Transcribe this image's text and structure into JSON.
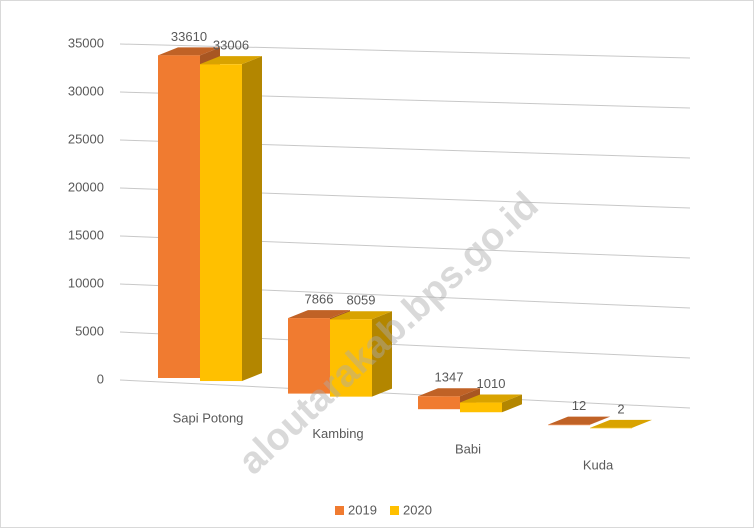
{
  "chart_data": {
    "type": "bar3d",
    "categories": [
      "Sapi Potong",
      "Kambing",
      "Babi",
      "Kuda"
    ],
    "series": [
      {
        "name": "2019",
        "color": "#f07b30",
        "values": [
          33610,
          7866,
          1347,
          12
        ]
      },
      {
        "name": "2020",
        "color": "#ffc000",
        "values": [
          33006,
          8059,
          1010,
          2
        ]
      }
    ],
    "ylim": [
      0,
      35000
    ],
    "yticks": [
      0,
      5000,
      10000,
      15000,
      20000,
      25000,
      30000,
      35000
    ],
    "grid": true,
    "legend": "bottom",
    "watermark": "aloutarakab.bps.go.id"
  }
}
